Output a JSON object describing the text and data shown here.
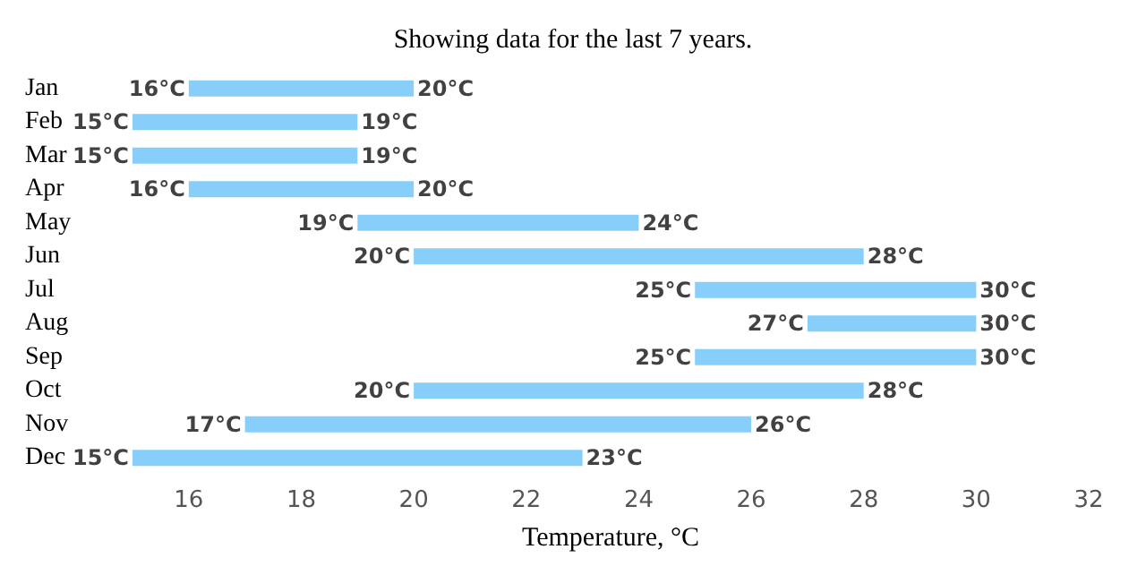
{
  "chart_data": {
    "type": "bar",
    "orientation": "horizontal",
    "title": "Showing data for the last 7 years.",
    "xlabel": "Temperature, °C",
    "categories": [
      "Jan",
      "Feb",
      "Mar",
      "Apr",
      "May",
      "Jun",
      "Jul",
      "Aug",
      "Sep",
      "Oct",
      "Nov",
      "Dec"
    ],
    "base": [
      16,
      15,
      15,
      16,
      19,
      20,
      25,
      27,
      25,
      20,
      17,
      15
    ],
    "values": [
      4,
      4,
      4,
      4,
      5,
      8,
      5,
      3,
      5,
      8,
      9,
      8
    ],
    "color": "#87cefa",
    "xlim": [
      15,
      32
    ],
    "xticks": [
      16,
      18,
      20,
      22,
      24,
      26,
      28,
      30,
      32
    ],
    "grid": false,
    "annotations": [
      {
        "text": "16°C",
        "x": 16,
        "y": "Jan"
      },
      {
        "text": "20°C",
        "x": 20,
        "y": "Jan"
      },
      {
        "text": "15°C",
        "x": 15,
        "y": "Feb"
      },
      {
        "text": "19°C",
        "x": 19,
        "y": "Feb"
      },
      {
        "text": "15°C",
        "x": 15,
        "y": "Mar"
      },
      {
        "text": "19°C",
        "x": 19,
        "y": "Mar"
      },
      {
        "text": "16°C",
        "x": 16,
        "y": "Apr"
      },
      {
        "text": "20°C",
        "x": 20,
        "y": "Apr"
      },
      {
        "text": "19°C",
        "x": 19,
        "y": "May"
      },
      {
        "text": "24°C",
        "x": 24,
        "y": "May"
      },
      {
        "text": "20°C",
        "x": 20,
        "y": "Jun"
      },
      {
        "text": "28°C",
        "x": 28,
        "y": "Jun"
      },
      {
        "text": "25°C",
        "x": 25,
        "y": "Jul"
      },
      {
        "text": "30°C",
        "x": 30,
        "y": "Jul"
      },
      {
        "text": "27°C",
        "x": 27,
        "y": "Aug"
      },
      {
        "text": "30°C",
        "x": 30,
        "y": "Aug"
      },
      {
        "text": "25°C",
        "x": 25,
        "y": "Sep"
      },
      {
        "text": "30°C",
        "x": 30,
        "y": "Sep"
      },
      {
        "text": "20°C",
        "x": 20,
        "y": "Oct"
      },
      {
        "text": "28°C",
        "x": 28,
        "y": "Oct"
      },
      {
        "text": "17°C",
        "x": 17,
        "y": "Nov"
      },
      {
        "text": "26°C",
        "x": 26,
        "y": "Nov"
      },
      {
        "text": "15°C",
        "x": 15,
        "y": "Dec"
      },
      {
        "text": "23°C",
        "x": 23,
        "y": "Dec"
      }
    ]
  }
}
